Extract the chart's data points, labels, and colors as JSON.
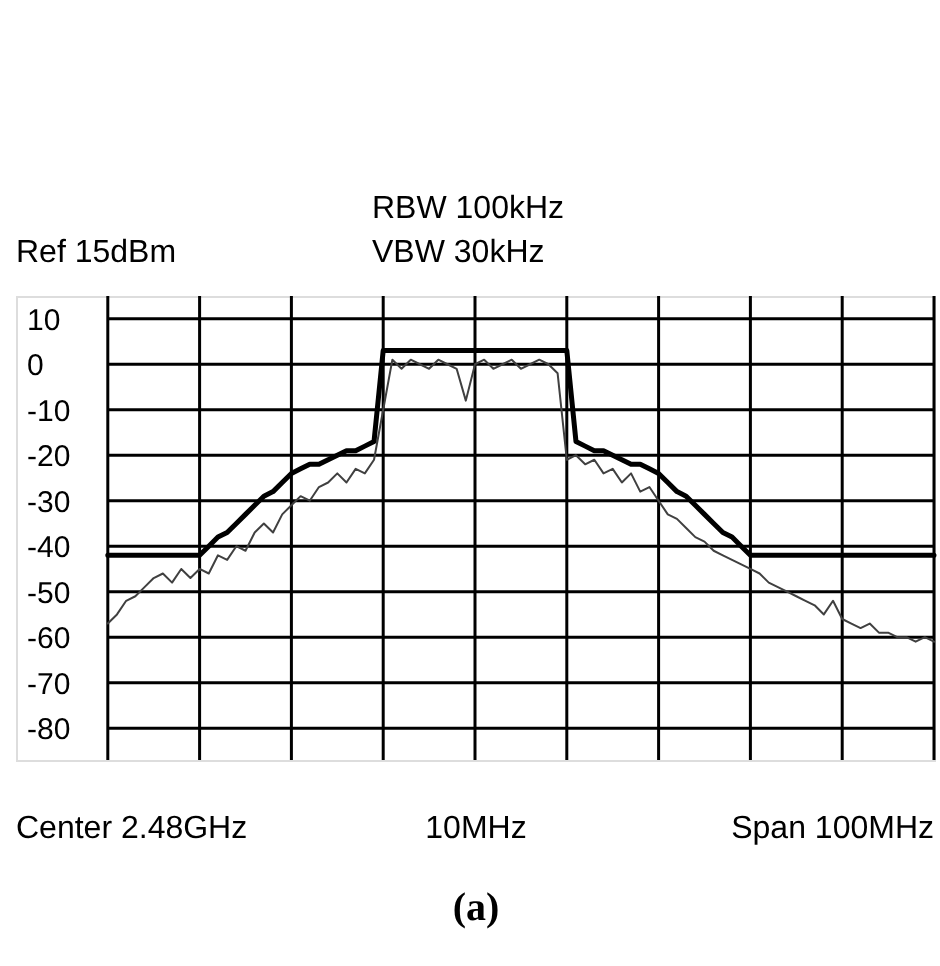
{
  "chart_data": {
    "type": "line",
    "annotations": [
      "RBW 100kHz",
      "VBW 30kHz",
      "Ref 15dBm",
      "Center 2.48GHz",
      "10MHz",
      "Span 100MHz",
      "(a)"
    ],
    "categories": [
      null,
      null,
      null,
      null,
      null,
      null,
      null,
      null,
      null,
      null,
      null,
      null,
      null,
      null,
      null,
      null,
      null,
      null,
      null,
      null,
      null,
      null,
      null,
      null,
      null,
      null,
      null,
      null,
      null,
      null,
      null,
      null,
      null,
      null,
      null,
      null,
      null,
      null,
      null,
      null,
      null,
      null,
      null,
      null,
      null,
      null,
      null,
      null,
      null,
      null,
      null,
      null,
      null,
      null,
      null,
      null,
      null,
      null,
      null,
      null,
      null,
      null,
      null,
      null,
      null,
      null,
      null,
      null,
      null,
      null,
      null,
      null,
      null,
      null,
      null,
      null,
      null,
      null,
      null,
      null,
      null,
      null,
      null,
      null,
      null,
      null,
      null,
      null,
      null,
      null,
      null
    ],
    "ylim": [
      -87,
      15
    ],
    "yticks": [
      10,
      0,
      -10,
      -20,
      -30,
      -40,
      -50,
      -60,
      -70,
      -80
    ],
    "grid": true,
    "series": [
      {
        "color": "#404040",
        "values": [
          -57,
          -55,
          -52,
          -51,
          -49,
          -47,
          -46,
          -48,
          -45,
          -47,
          -45,
          -46,
          -42,
          -43,
          -40,
          -41,
          -37,
          -35,
          -37,
          -33,
          -31,
          -29,
          -30,
          -27,
          -26,
          -24,
          -26,
          -23,
          -24,
          -21,
          -10,
          1,
          -1,
          1,
          0,
          -1,
          1,
          0,
          -1,
          -8,
          0,
          1,
          -1,
          0,
          1,
          -1,
          0,
          1,
          0,
          -2,
          -21,
          -20,
          -22,
          -21,
          -24,
          -23,
          -26,
          -24,
          -28,
          -27,
          -30,
          -33,
          -34,
          -36,
          -38,
          -39,
          -41,
          -42,
          -43,
          -44,
          -45,
          -46,
          -48,
          -49,
          -50,
          -51,
          -52,
          -53,
          -55,
          -52,
          -56,
          -57,
          -58,
          -57,
          -59,
          -59,
          -60,
          -60,
          -61,
          -60,
          -61
        ]
      },
      {
        "color": "#000000",
        "values": [
          -42,
          -42,
          -42,
          -42,
          -42,
          -42,
          -42,
          -42,
          -42,
          -42,
          -42,
          -40,
          -38,
          -37,
          -35,
          -33,
          -31,
          -29,
          -28,
          -26,
          -24,
          -23,
          -22,
          -22,
          -21,
          -20,
          -19,
          -19,
          -18,
          -17,
          3,
          3,
          3,
          3,
          3,
          3,
          3,
          3,
          3,
          3,
          3,
          3,
          3,
          3,
          3,
          3,
          3,
          3,
          3,
          3,
          3,
          -17,
          -18,
          -19,
          -19,
          -20,
          -21,
          -22,
          -22,
          -23,
          -24,
          -26,
          -28,
          -29,
          -31,
          -33,
          -35,
          -37,
          -38,
          -40,
          -42,
          -42,
          -42,
          -42,
          -42,
          -42,
          -42,
          -42,
          -42,
          -42,
          -42,
          -42,
          -42,
          -42,
          -42,
          -42,
          -42,
          -42,
          -42,
          -42,
          -42
        ]
      }
    ]
  }
}
